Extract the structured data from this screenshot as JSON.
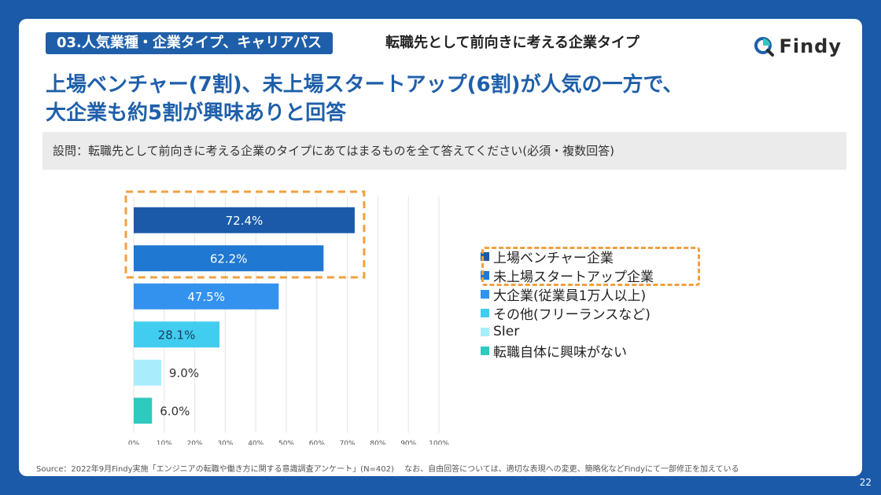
{
  "header": {
    "section_tag": "03.人気業種・企業タイプ、キャリアパス",
    "section_subtitle": "転職先として前向きに考える企業タイプ",
    "logo_text": "Findy"
  },
  "headline": {
    "line1": "上場ベンチャー(7割)、未上場スタートアップ(6割)が人気の一方で、",
    "line2": "大企業も約5割が興味ありと回答"
  },
  "question": "設問：転職先として前向きに考える企業のタイプにあてはまるものを全て答えてください(必須・複数回答)",
  "chart_data": {
    "type": "bar",
    "orientation": "horizontal",
    "categories": [
      "上場ベンチャー企業",
      "未上場スタートアップ企業",
      "大企業(従業員1万人以上)",
      "その他(フリーランスなど)",
      "SIer",
      "転職自体に興味がない"
    ],
    "values": [
      72.4,
      62.2,
      47.5,
      28.1,
      9.0,
      6.0
    ],
    "value_labels": [
      "72.4%",
      "62.2%",
      "47.5%",
      "28.1%",
      "9.0%",
      "6.0%"
    ],
    "colors": [
      "#1a5aa8",
      "#1f78d1",
      "#3392ee",
      "#40cdf0",
      "#a9ecfb",
      "#2ec9bf"
    ],
    "label_inside": [
      true,
      true,
      true,
      true,
      false,
      false
    ],
    "xlim": [
      0,
      100
    ],
    "xticks": [
      "0%",
      "10%",
      "20%",
      "30%",
      "40%",
      "50%",
      "60%",
      "70%",
      "80%",
      "90%",
      "100%"
    ],
    "highlighted_count": 2,
    "highlight_color": "#f0a040",
    "grid": true,
    "legend_position": "right"
  },
  "footer": {
    "source": "Source：2022年9月Findy実施「エンジニアの転職や働き方に関する意識調査アンケート」(N=402)　 なお、自由回答については、適切な表現への変更、簡略化などFindyにて一部修正を加えている",
    "page_number": "22"
  }
}
